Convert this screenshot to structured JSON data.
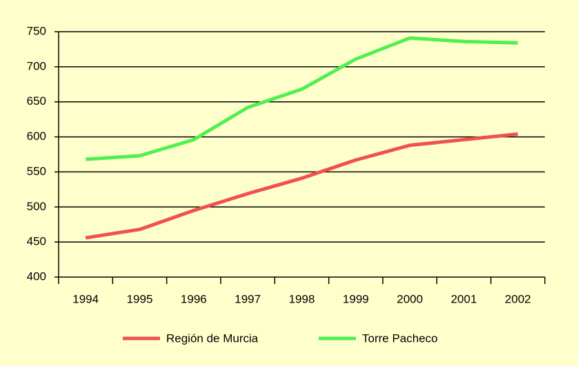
{
  "chart_data": {
    "type": "line",
    "categories": [
      "1994",
      "1995",
      "1996",
      "1997",
      "1998",
      "1999",
      "2000",
      "2001",
      "2002"
    ],
    "series": [
      {
        "name": "Región de Murcia",
        "color": "#f05050",
        "values": [
          456,
          468,
          495,
          519,
          541,
          567,
          588,
          596,
          604
        ]
      },
      {
        "name": "Torre Pacheco",
        "color": "#50f050",
        "values": [
          568,
          573,
          596,
          642,
          668,
          711,
          741,
          736,
          734
        ]
      }
    ],
    "ylim": [
      400,
      750
    ],
    "yticks": [
      400,
      450,
      500,
      550,
      600,
      650,
      700,
      750
    ],
    "grid": true,
    "legend": "bottom"
  }
}
